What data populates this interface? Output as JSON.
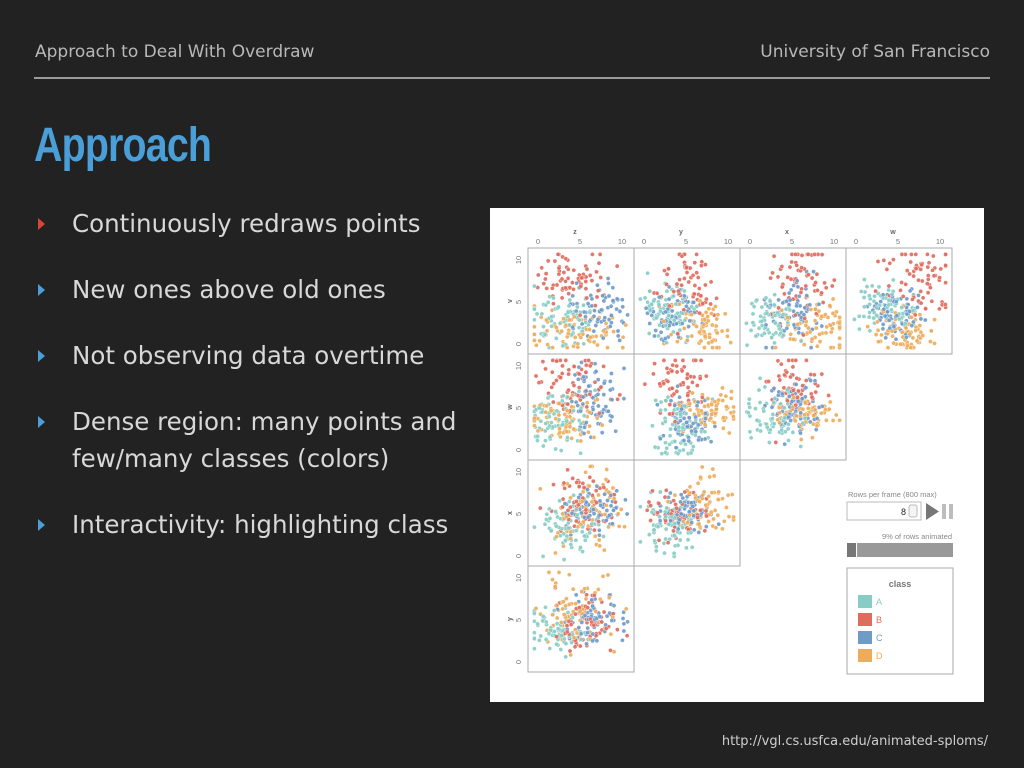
{
  "header": {
    "left": "Approach to Deal With Overdraw",
    "right": "University of San Francisco"
  },
  "title": "Approach",
  "bullets": [
    {
      "text": "Continuously redraws points",
      "arrow_color": "#d9453a"
    },
    {
      "text": "New ones above old ones",
      "arrow_color": "#4a9fd8"
    },
    {
      "text": "Not observing data overtime",
      "arrow_color": "#4a9fd8"
    },
    {
      "text": "Dense region: many points and few/many classes (colors)",
      "arrow_color": "#4a9fd8"
    },
    {
      "text": "Interactivity: highlighting class",
      "arrow_color": "#4a9fd8"
    }
  ],
  "footer_url": "http://vgl.cs.usfca.edu/animated-sploms/",
  "splom": {
    "columns": [
      "z",
      "y",
      "x",
      "w"
    ],
    "rows": [
      "v",
      "w",
      "x",
      "y"
    ],
    "tick_labels": [
      "0",
      "5",
      "10"
    ],
    "controls": {
      "rows_per_frame_label": "Rows per frame (800 max)",
      "rows_per_frame_value": "8",
      "progress_label": "9% of rows animated",
      "progress_fraction": 0.09
    },
    "legend": {
      "title": "class",
      "classes": [
        {
          "label": "A",
          "color": "#88cdc5"
        },
        {
          "label": "B",
          "color": "#e06c5e"
        },
        {
          "label": "C",
          "color": "#6f9bc9"
        },
        {
          "label": "D",
          "color": "#eeac5a"
        }
      ]
    }
  }
}
